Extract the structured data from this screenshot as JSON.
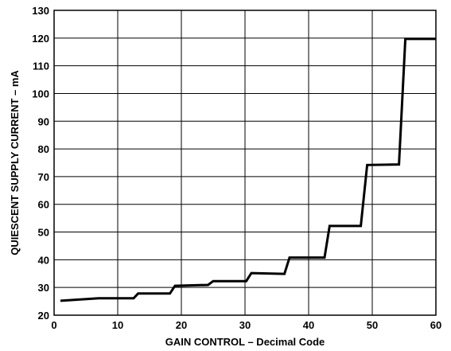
{
  "chart_data": {
    "type": "line",
    "title": "",
    "xlabel": "GAIN CONTROL – Decimal Code",
    "ylabel": "QUIESCENT SUPPLY CURRENT – mA",
    "xlim": [
      0,
      60
    ],
    "ylim": [
      20,
      130
    ],
    "x_ticks": [
      0,
      10,
      20,
      30,
      40,
      50,
      60
    ],
    "y_ticks": [
      20,
      30,
      40,
      50,
      60,
      70,
      80,
      90,
      100,
      110,
      120,
      130
    ],
    "grid": true,
    "legend": "none",
    "series": [
      {
        "color": "#000000",
        "points": [
          [
            1,
            25.2
          ],
          [
            7,
            26.1
          ],
          [
            12.5,
            26.1
          ],
          [
            13.2,
            27.8
          ],
          [
            18.2,
            27.8
          ],
          [
            19,
            30.6
          ],
          [
            24.2,
            30.9
          ],
          [
            25,
            32.3
          ],
          [
            30.2,
            32.3
          ],
          [
            31,
            35.2
          ],
          [
            36.2,
            34.9
          ],
          [
            37,
            40.8
          ],
          [
            42.5,
            40.8
          ],
          [
            43.3,
            52.2
          ],
          [
            48.2,
            52.2
          ],
          [
            49.2,
            74.2
          ],
          [
            54.2,
            74.4
          ],
          [
            55.2,
            119.7
          ],
          [
            60,
            119.7
          ]
        ]
      }
    ]
  }
}
